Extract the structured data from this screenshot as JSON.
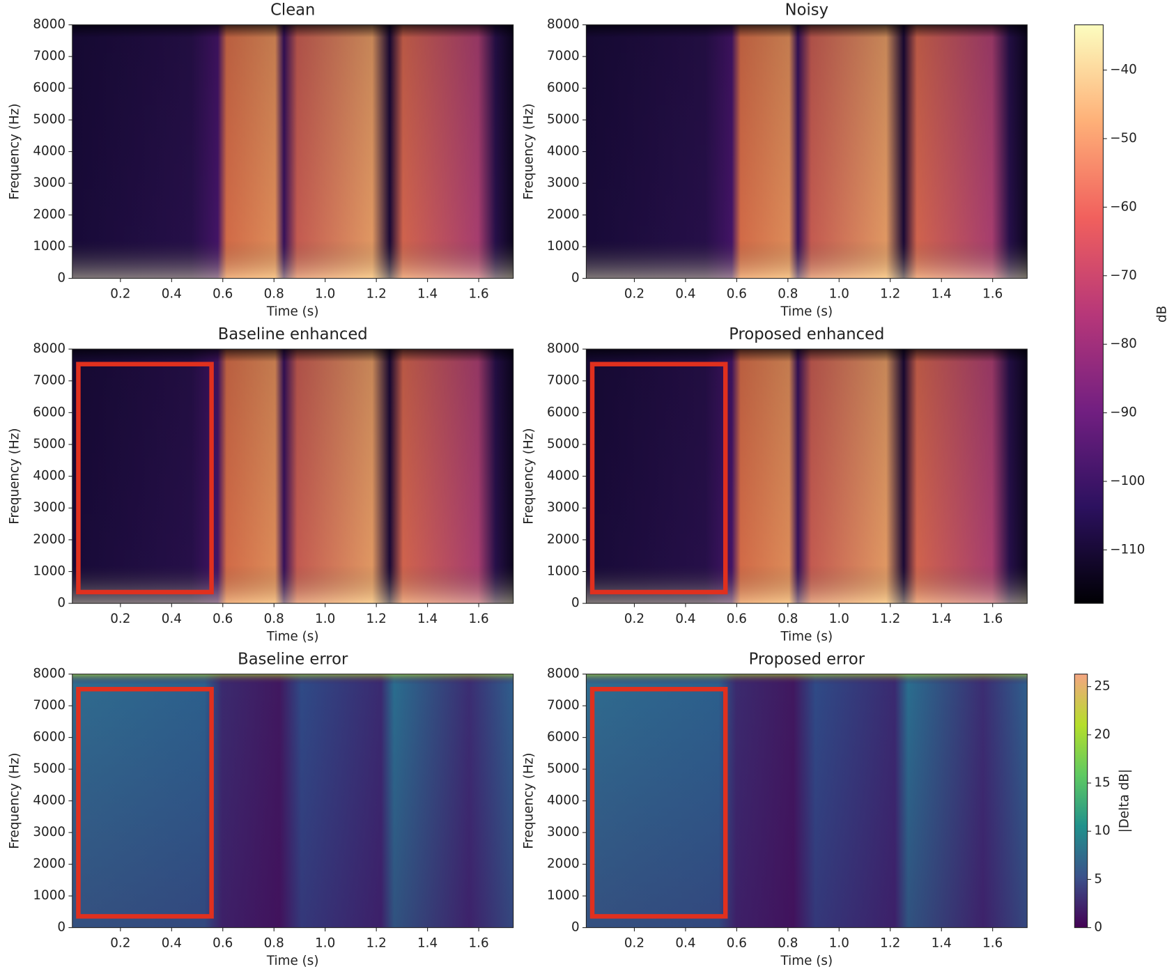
{
  "chart_data": [
    {
      "type": "heatmap",
      "colormap": "magma",
      "title": "Clean",
      "xlabel": "Time (s)",
      "ylabel": "Frequency (Hz)",
      "xlim": [
        0.012,
        1.735
      ],
      "ylim": [
        0,
        8000
      ],
      "xticks": [
        0.2,
        0.4,
        0.6,
        0.8,
        {
          "value": 1,
          "label": "1.0"
        },
        1.2,
        1.4,
        1.6
      ],
      "yticks": [
        0,
        1000,
        2000,
        3000,
        4000,
        5000,
        6000,
        7000,
        8000
      ]
    },
    {
      "type": "heatmap",
      "colormap": "magma",
      "title": "Noisy",
      "xlabel": "Time (s)",
      "ylabel": "Frequency (Hz)",
      "xlim": [
        0.012,
        1.735
      ],
      "ylim": [
        0,
        8000
      ],
      "xticks": [
        0.2,
        0.4,
        0.6,
        0.8,
        {
          "value": 1,
          "label": "1.0"
        },
        1.2,
        1.4,
        1.6
      ],
      "yticks": [
        0,
        1000,
        2000,
        3000,
        4000,
        5000,
        6000,
        7000,
        8000
      ]
    },
    {
      "type": "heatmap",
      "colormap": "magma",
      "title": "Baseline enhanced",
      "xlabel": "Time (s)",
      "ylabel": "Frequency (Hz)",
      "xlim": [
        0.012,
        1.735
      ],
      "ylim": [
        0,
        8000
      ],
      "xticks": [
        0.2,
        0.4,
        0.6,
        0.8,
        {
          "value": 1,
          "label": "1.0"
        },
        1.2,
        1.4,
        1.6
      ],
      "yticks": [
        0,
        1000,
        2000,
        3000,
        4000,
        5000,
        6000,
        7000,
        8000
      ]
    },
    {
      "type": "heatmap",
      "colormap": "magma",
      "title": "Proposed enhanced",
      "xlabel": "Time (s)",
      "ylabel": "Frequency (Hz)",
      "xlim": [
        0.012,
        1.735
      ],
      "ylim": [
        0,
        8000
      ],
      "xticks": [
        0.2,
        0.4,
        0.6,
        0.8,
        {
          "value": 1,
          "label": "1.0"
        },
        1.2,
        1.4,
        1.6
      ],
      "yticks": [
        0,
        1000,
        2000,
        3000,
        4000,
        5000,
        6000,
        7000,
        8000
      ]
    },
    {
      "type": "heatmap",
      "colormap": "viridis",
      "title": "Baseline error",
      "xlabel": "Time (s)",
      "ylabel": "Frequency (Hz)",
      "xlim": [
        0.012,
        1.735
      ],
      "ylim": [
        0,
        8000
      ],
      "xticks": [
        0.2,
        0.4,
        0.6,
        0.8,
        {
          "value": 1,
          "label": "1.0"
        },
        1.2,
        1.4,
        1.6
      ],
      "yticks": [
        0,
        1000,
        2000,
        3000,
        4000,
        5000,
        6000,
        7000,
        8000
      ]
    },
    {
      "type": "heatmap",
      "colormap": "viridis",
      "title": "Proposed error",
      "xlabel": "Time (s)",
      "ylabel": "Frequency (Hz)",
      "xlim": [
        0.012,
        1.735
      ],
      "ylim": [
        0,
        8000
      ],
      "xticks": [
        0.2,
        0.4,
        0.6,
        0.8,
        {
          "value": 1,
          "label": "1.0"
        },
        1.2,
        1.4,
        1.6
      ],
      "yticks": [
        0,
        1000,
        2000,
        3000,
        4000,
        5000,
        6000,
        7000,
        8000
      ]
    },
    {
      "type": "colorbar",
      "label": "dB",
      "ylim": [
        -117.8,
        -33.4
      ],
      "colors": [
        "#000004",
        "#2c115f",
        "#721f81",
        "#b73779",
        "#f1605d",
        "#feb078",
        "#fcfdbf"
      ],
      "yticks": [
        {
          "value": -110,
          "label": "−110"
        },
        {
          "value": -100,
          "label": "−100"
        },
        {
          "value": -90,
          "label": "−90"
        },
        {
          "value": -80,
          "label": "−80"
        },
        {
          "value": -70,
          "label": "−70"
        },
        {
          "value": -60,
          "label": "−60"
        },
        {
          "value": -50,
          "label": "−50"
        },
        {
          "value": -40,
          "label": "−40"
        }
      ]
    },
    {
      "type": "colorbar",
      "label": "|Delta dB|",
      "ylim": [
        0,
        26.3
      ],
      "colors": [
        "#440154",
        "#3b528b",
        "#21918c",
        "#5ec962",
        "#b5de2b",
        "#f4a582"
      ],
      "yticks": [
        0,
        5,
        10,
        15,
        20,
        25
      ]
    }
  ]
}
